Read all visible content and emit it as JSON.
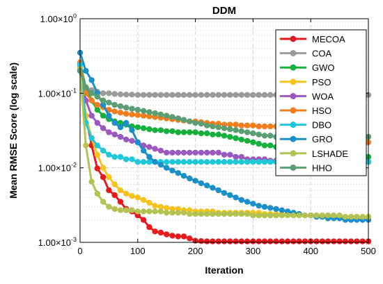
{
  "chart_data": {
    "type": "line",
    "title": "DDM",
    "xlabel": "Iteration",
    "ylabel": "Mean RMSE Score (log scale)",
    "xlim": [
      0,
      500
    ],
    "ylim": [
      0.001,
      1
    ],
    "yscale": "log",
    "grid": true,
    "legend_position": "top-right",
    "x_ticks": [
      0,
      100,
      200,
      300,
      400,
      500
    ],
    "y_ticks": [
      {
        "value": 1,
        "mantissa": "1.00",
        "exponent": "0"
      },
      {
        "value": 0.1,
        "mantissa": "1.00",
        "exponent": "-1"
      },
      {
        "value": 0.01,
        "mantissa": "1.00",
        "exponent": "-2"
      },
      {
        "value": 0.001,
        "mantissa": "1.00",
        "exponent": "-3"
      }
    ],
    "x": [
      0,
      10,
      20,
      30,
      40,
      50,
      60,
      70,
      80,
      90,
      100,
      110,
      120,
      130,
      140,
      150,
      160,
      170,
      180,
      190,
      200,
      210,
      220,
      230,
      240,
      250,
      260,
      270,
      280,
      290,
      300,
      310,
      320,
      330,
      340,
      350,
      360,
      370,
      380,
      390,
      400,
      410,
      420,
      430,
      440,
      450,
      460,
      470,
      480,
      490,
      500
    ],
    "series": [
      {
        "name": "MECOA",
        "color": "#e8191c",
        "values": [
          0.2,
          0.05,
          0.02,
          0.0098,
          0.0075,
          0.005,
          0.0043,
          0.0035,
          0.0028,
          0.0026,
          0.0023,
          0.002,
          0.0016,
          0.0014,
          0.00135,
          0.00128,
          0.00123,
          0.0012,
          0.0012,
          0.00113,
          0.00105,
          0.00104,
          0.00103,
          0.00103,
          0.00103,
          0.00103,
          0.00103,
          0.00103,
          0.00103,
          0.00103,
          0.00103,
          0.00103,
          0.00103,
          0.00103,
          0.00103,
          0.00103,
          0.00103,
          0.00103,
          0.00103,
          0.00103,
          0.00103,
          0.00103,
          0.00103,
          0.00103,
          0.00103,
          0.00103,
          0.00103,
          0.00103,
          0.00103,
          0.00103,
          0.00103
        ]
      },
      {
        "name": "COA",
        "color": "#9a9a9a",
        "values": [
          0.22,
          0.12,
          0.11,
          0.105,
          0.1,
          0.1,
          0.098,
          0.097,
          0.096,
          0.096,
          0.095,
          0.095,
          0.095,
          0.095,
          0.095,
          0.095,
          0.095,
          0.095,
          0.095,
          0.095,
          0.095,
          0.095,
          0.095,
          0.095,
          0.095,
          0.095,
          0.095,
          0.095,
          0.095,
          0.095,
          0.095,
          0.095,
          0.095,
          0.095,
          0.095,
          0.095,
          0.095,
          0.095,
          0.095,
          0.095,
          0.095,
          0.095,
          0.095,
          0.095,
          0.095,
          0.095,
          0.095,
          0.095,
          0.095,
          0.095,
          0.095
        ]
      },
      {
        "name": "GWO",
        "color": "#16b13c",
        "values": [
          0.25,
          0.12,
          0.08,
          0.06,
          0.05,
          0.045,
          0.042,
          0.04,
          0.038,
          0.036,
          0.035,
          0.034,
          0.033,
          0.032,
          0.032,
          0.031,
          0.031,
          0.03,
          0.03,
          0.03,
          0.03,
          0.029,
          0.029,
          0.028,
          0.028,
          0.027,
          0.026,
          0.025,
          0.024,
          0.023,
          0.022,
          0.021,
          0.02,
          0.02,
          0.019,
          0.019,
          0.018,
          0.018,
          0.017,
          0.017,
          0.017,
          0.016,
          0.016,
          0.015,
          0.015,
          0.014,
          0.014,
          0.014,
          0.014,
          0.014,
          0.014
        ]
      },
      {
        "name": "PSO",
        "color": "#f8c31c",
        "values": [
          0.22,
          0.05,
          0.025,
          0.015,
          0.01,
          0.0075,
          0.006,
          0.005,
          0.0045,
          0.0042,
          0.004,
          0.0037,
          0.0034,
          0.0031,
          0.003,
          0.0029,
          0.0028,
          0.0028,
          0.0027,
          0.0027,
          0.0026,
          0.0026,
          0.0026,
          0.0026,
          0.0025,
          0.0025,
          0.0025,
          0.0025,
          0.0025,
          0.0025,
          0.0025,
          0.0025,
          0.0024,
          0.0024,
          0.0024,
          0.0024,
          0.0024,
          0.0024,
          0.0024,
          0.0023,
          0.0023,
          0.0023,
          0.0023,
          0.0023,
          0.0022,
          0.0022,
          0.0022,
          0.0022,
          0.0022,
          0.0022,
          0.0022
        ]
      },
      {
        "name": "WOA",
        "color": "#9b59c0",
        "values": [
          0.24,
          0.08,
          0.05,
          0.04,
          0.034,
          0.03,
          0.028,
          0.026,
          0.024,
          0.023,
          0.022,
          0.02,
          0.019,
          0.018,
          0.017,
          0.016,
          0.016,
          0.016,
          0.016,
          0.016,
          0.016,
          0.016,
          0.016,
          0.016,
          0.016,
          0.015,
          0.015,
          0.014,
          0.014,
          0.013,
          0.013,
          0.013,
          0.013,
          0.0125,
          0.0125,
          0.0122,
          0.012,
          0.012,
          0.012,
          0.012,
          0.012,
          0.012,
          0.012,
          0.012,
          0.012,
          0.012,
          0.012,
          0.012,
          0.012,
          0.012,
          0.012
        ]
      },
      {
        "name": "HSO",
        "color": "#f27d1c",
        "values": [
          0.26,
          0.1,
          0.08,
          0.07,
          0.065,
          0.06,
          0.057,
          0.055,
          0.053,
          0.052,
          0.051,
          0.05,
          0.049,
          0.048,
          0.047,
          0.046,
          0.045,
          0.044,
          0.043,
          0.042,
          0.042,
          0.041,
          0.04,
          0.039,
          0.039,
          0.038,
          0.038,
          0.038,
          0.037,
          0.037,
          0.037,
          0.036,
          0.036,
          0.036,
          0.036,
          0.036,
          0.035,
          0.035,
          0.035,
          0.035,
          0.035,
          0.035,
          0.035,
          0.035,
          0.035,
          0.035,
          0.034,
          0.034,
          0.034,
          0.034,
          0.022
        ]
      },
      {
        "name": "DBO",
        "color": "#1ec8d8",
        "values": [
          0.24,
          0.04,
          0.025,
          0.02,
          0.017,
          0.015,
          0.014,
          0.014,
          0.013,
          0.013,
          0.012,
          0.012,
          0.012,
          0.012,
          0.012,
          0.012,
          0.012,
          0.012,
          0.012,
          0.012,
          0.012,
          0.012,
          0.012,
          0.012,
          0.012,
          0.012,
          0.012,
          0.012,
          0.012,
          0.012,
          0.012,
          0.012,
          0.012,
          0.012,
          0.012,
          0.012,
          0.012,
          0.012,
          0.012,
          0.012,
          0.012,
          0.012,
          0.012,
          0.012,
          0.012,
          0.012,
          0.012,
          0.012,
          0.012,
          0.012,
          0.012
        ]
      },
      {
        "name": "GRO",
        "color": "#1a8fca",
        "values": [
          0.35,
          0.2,
          0.15,
          0.1,
          0.07,
          0.05,
          0.04,
          0.035,
          0.04,
          0.032,
          0.022,
          0.017,
          0.014,
          0.012,
          0.011,
          0.01,
          0.0092,
          0.0085,
          0.0078,
          0.0072,
          0.0067,
          0.0062,
          0.0058,
          0.0054,
          0.005,
          0.0046,
          0.0043,
          0.004,
          0.0037,
          0.0035,
          0.0033,
          0.0031,
          0.003,
          0.0029,
          0.0028,
          0.0027,
          0.0026,
          0.0025,
          0.0024,
          0.0023,
          0.0023,
          0.0022,
          0.0022,
          0.0021,
          0.0021,
          0.0021,
          0.002,
          0.002,
          0.002,
          0.002,
          0.002
        ]
      },
      {
        "name": "LSHADE",
        "color": "#b3c252",
        "values": [
          0.21,
          0.02,
          0.0065,
          0.0045,
          0.0035,
          0.003,
          0.0028,
          0.0027,
          0.0027,
          0.0027,
          0.0026,
          0.0026,
          0.0026,
          0.0026,
          0.0026,
          0.0025,
          0.0025,
          0.0025,
          0.0025,
          0.0024,
          0.0024,
          0.0024,
          0.0024,
          0.0024,
          0.0024,
          0.0024,
          0.0024,
          0.0024,
          0.0024,
          0.0024,
          0.0023,
          0.0023,
          0.0023,
          0.0023,
          0.0023,
          0.0023,
          0.0023,
          0.0023,
          0.0023,
          0.0023,
          0.0023,
          0.0023,
          0.0023,
          0.0023,
          0.0023,
          0.0023,
          0.0022,
          0.0022,
          0.0022,
          0.0022,
          0.0022
        ]
      },
      {
        "name": "HHO",
        "color": "#5c9e74",
        "values": [
          0.2,
          0.12,
          0.1,
          0.09,
          0.08,
          0.075,
          0.07,
          0.067,
          0.064,
          0.062,
          0.06,
          0.058,
          0.056,
          0.054,
          0.052,
          0.05,
          0.048,
          0.046,
          0.044,
          0.042,
          0.04,
          0.039,
          0.037,
          0.036,
          0.035,
          0.034,
          0.033,
          0.032,
          0.031,
          0.03,
          0.029,
          0.028,
          0.027,
          0.027,
          0.026,
          0.026,
          0.026,
          0.026,
          0.026,
          0.026,
          0.026,
          0.026,
          0.026,
          0.026,
          0.026,
          0.026,
          0.026,
          0.026,
          0.026,
          0.026,
          0.026
        ]
      }
    ]
  }
}
